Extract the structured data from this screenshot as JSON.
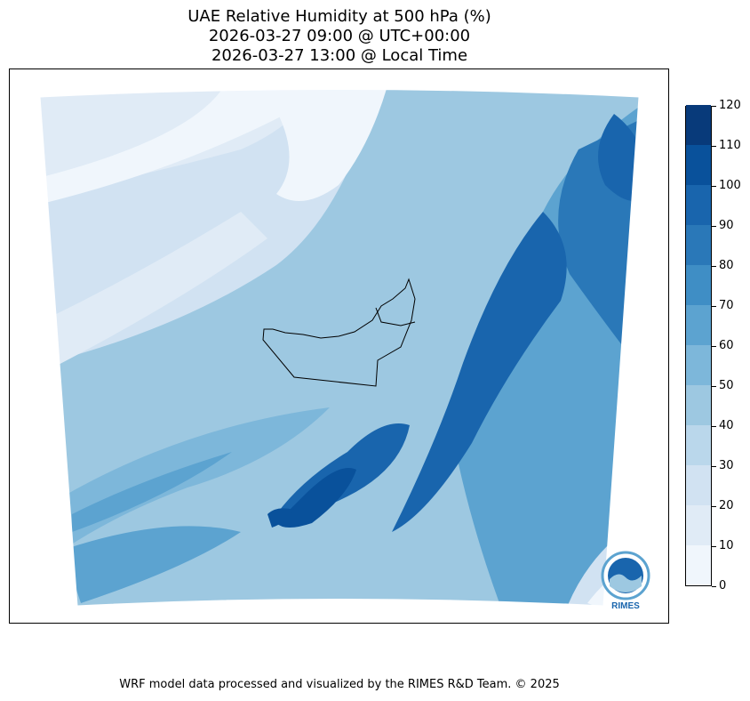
{
  "title": {
    "line1": "UAE Relative Humidity at 500 hPa (%)",
    "line2": "2026-03-27 09:00 @ UTC+00:00",
    "line3": "2026-03-27 13:00 @ Local Time"
  },
  "colorbar": {
    "ticks": [
      "0",
      "10",
      "20",
      "30",
      "40",
      "50",
      "60",
      "70",
      "80",
      "90",
      "100",
      "110",
      "120"
    ],
    "colors": [
      "#f0f6fc",
      "#e0ebf6",
      "#d1e2f2",
      "#bad7eb",
      "#9dc8e1",
      "#7db7da",
      "#5ca3d0",
      "#3f8ec5",
      "#2a78b8",
      "#1965ad",
      "#09519b",
      "#083a7a"
    ]
  },
  "logo": {
    "text": "RIMES"
  },
  "footer": "WRF model data processed and visualized by the RIMES R&D Team. © 2025"
}
